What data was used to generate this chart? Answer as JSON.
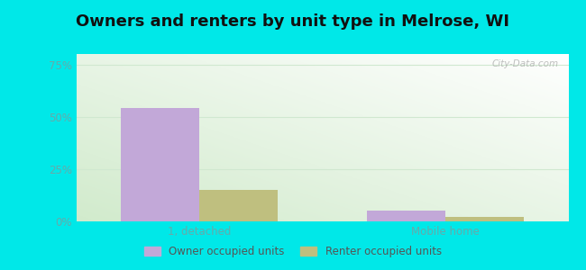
{
  "title": "Owners and renters by unit type in Melrose, WI",
  "categories": [
    "1, detached",
    "Mobile home"
  ],
  "owner_values": [
    54.0,
    5.0
  ],
  "renter_values": [
    15.0,
    2.0
  ],
  "owner_color": "#c2a8d8",
  "renter_color": "#bfbf7f",
  "background_outer": "#00e8e8",
  "yticks": [
    0,
    25,
    50,
    75
  ],
  "ytick_labels": [
    "0%",
    "25%",
    "50%",
    "75%"
  ],
  "ylim": [
    0,
    80
  ],
  "bar_width": 0.32,
  "title_fontsize": 13,
  "legend_labels": [
    "Owner occupied units",
    "Renter occupied units"
  ],
  "watermark": "City-Data.com",
  "tick_color": "#66aaaa",
  "grid_color": "#d0e8d0"
}
